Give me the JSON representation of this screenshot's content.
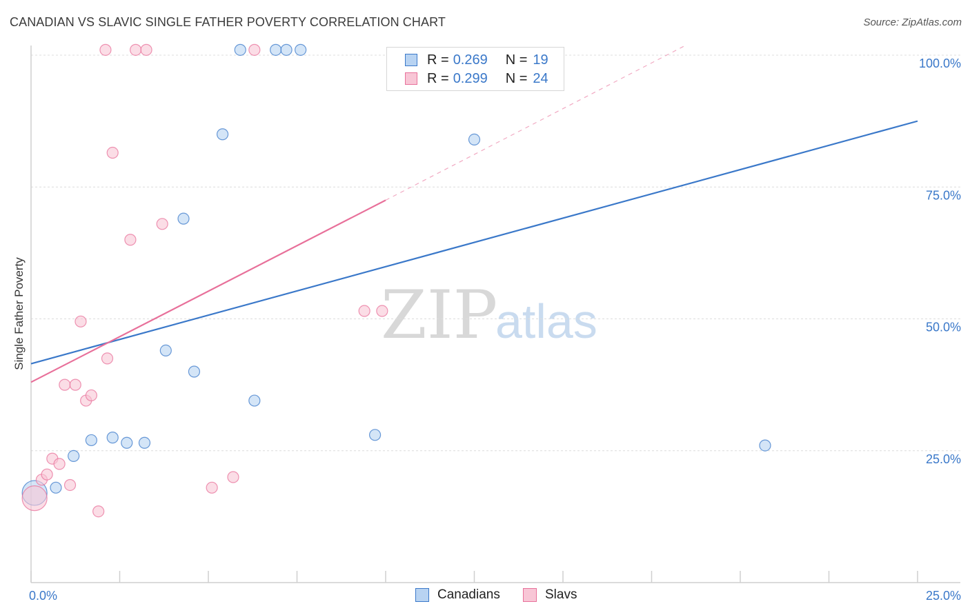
{
  "header": {
    "title": "CANADIAN VS SLAVIC SINGLE FATHER POVERTY CORRELATION CHART",
    "source": "Source: ZipAtlas.com"
  },
  "watermark": {
    "zip": "ZIP",
    "atlas": "atlas"
  },
  "legend": {
    "r_label": "R =",
    "n_label": "N =",
    "rows": [
      {
        "series": "Canadians",
        "r": "0.269",
        "n": "19",
        "color": "#3a78c9",
        "fill": "#b8d3f2"
      },
      {
        "series": "Slavs",
        "r": "0.299",
        "n": "24",
        "color": "#e8709a",
        "fill": "#f8c6d6"
      }
    ]
  },
  "bottom_legend": {
    "items": [
      "Canadians",
      "Slavs"
    ]
  },
  "chart_data": {
    "type": "scatter",
    "title": "CANADIAN VS SLAVIC SINGLE FATHER POVERTY CORRELATION CHART",
    "xlabel": "",
    "ylabel": "Single Father Poverty",
    "xlim": [
      0,
      25
    ],
    "ylim": [
      0,
      100
    ],
    "x_tick_labels": [
      {
        "value": 0,
        "label": "0.0%"
      },
      {
        "value": 25,
        "label": "25.0%"
      }
    ],
    "y_tick_labels": [
      {
        "value": 25,
        "label": "25.0%"
      },
      {
        "value": 50,
        "label": "50.0%"
      },
      {
        "value": 75,
        "label": "75.0%"
      },
      {
        "value": 100,
        "label": "100.0%"
      }
    ],
    "grid": true,
    "series": [
      {
        "name": "Canadians",
        "color": "#3a78c9",
        "fill": "#b8d3f2",
        "points": [
          {
            "x": 0.1,
            "y": 17.0,
            "big": true
          },
          {
            "x": 0.7,
            "y": 18.0
          },
          {
            "x": 1.2,
            "y": 24.0
          },
          {
            "x": 1.7,
            "y": 27.0
          },
          {
            "x": 2.3,
            "y": 27.5
          },
          {
            "x": 2.7,
            "y": 26.5
          },
          {
            "x": 3.2,
            "y": 26.5
          },
          {
            "x": 3.8,
            "y": 44.0
          },
          {
            "x": 4.3,
            "y": 69.0
          },
          {
            "x": 4.6,
            "y": 40.0
          },
          {
            "x": 5.4,
            "y": 85.0
          },
          {
            "x": 5.9,
            "y": 101.0
          },
          {
            "x": 6.3,
            "y": 34.5
          },
          {
            "x": 6.9,
            "y": 101.0
          },
          {
            "x": 7.2,
            "y": 101.0
          },
          {
            "x": 7.6,
            "y": 101.0
          },
          {
            "x": 9.7,
            "y": 28.0
          },
          {
            "x": 12.5,
            "y": 84.0
          },
          {
            "x": 20.7,
            "y": 26.0
          }
        ],
        "trend": {
          "x0": 0,
          "y0": 41.5,
          "x1": 25,
          "y1": 87.5
        }
      },
      {
        "name": "Slavs",
        "color": "#e8709a",
        "fill": "#f8c6d6",
        "points": [
          {
            "x": 0.1,
            "y": 16.0,
            "big": true
          },
          {
            "x": 0.3,
            "y": 19.5
          },
          {
            "x": 0.45,
            "y": 20.5
          },
          {
            "x": 0.6,
            "y": 23.5
          },
          {
            "x": 0.8,
            "y": 22.5
          },
          {
            "x": 0.95,
            "y": 37.5
          },
          {
            "x": 1.1,
            "y": 18.5
          },
          {
            "x": 1.25,
            "y": 37.5
          },
          {
            "x": 1.4,
            "y": 49.5
          },
          {
            "x": 1.55,
            "y": 34.5
          },
          {
            "x": 1.7,
            "y": 35.5
          },
          {
            "x": 1.9,
            "y": 13.5
          },
          {
            "x": 2.1,
            "y": 101.0
          },
          {
            "x": 2.15,
            "y": 42.5
          },
          {
            "x": 2.3,
            "y": 81.5
          },
          {
            "x": 2.8,
            "y": 65.0
          },
          {
            "x": 2.95,
            "y": 101.0
          },
          {
            "x": 3.25,
            "y": 101.0
          },
          {
            "x": 3.7,
            "y": 68.0
          },
          {
            "x": 5.1,
            "y": 18.0
          },
          {
            "x": 5.7,
            "y": 20.0
          },
          {
            "x": 6.3,
            "y": 101.0
          },
          {
            "x": 9.4,
            "y": 51.5
          },
          {
            "x": 9.9,
            "y": 51.5
          }
        ],
        "trend": {
          "x0": 0,
          "y0": 38.0,
          "x1": 10,
          "y1": 72.5
        },
        "trend_dashed": {
          "x0": 10,
          "y0": 72.5,
          "x1": 18.5,
          "y1": 102.0
        }
      }
    ]
  }
}
